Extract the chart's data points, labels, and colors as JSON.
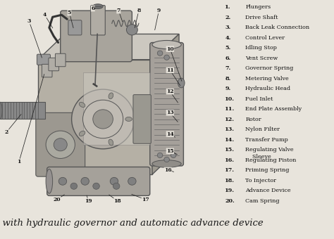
{
  "title": "DPA pump with hydraulic governor and automatic advance device",
  "background_color": "#e8e4dc",
  "title_fontsize": 9.5,
  "title_style": "italic",
  "legend_items": [
    "1. Plungers",
    "2. Drive Shaft",
    "3. Back Leak Connection",
    "4. Control Lever",
    "5. Idling Stop",
    "6. Vent Screw",
    "7. Governor Spring",
    "8. Metering Valve",
    "9. Hydraulic Head",
    "10. Fuel Inlet",
    "11. End Plate Assembly",
    "12. Rotor",
    "13. Nylon Filter",
    "14. Transfer Pump",
    "15. Regulating Valve\n    Sleeve",
    "16. Regulating Piston",
    "17. Priming Spring",
    "18. To Injector",
    "19. Advance Device",
    "20. Cam Spring"
  ],
  "figsize": [
    4.74,
    3.4
  ],
  "dpi": 100
}
